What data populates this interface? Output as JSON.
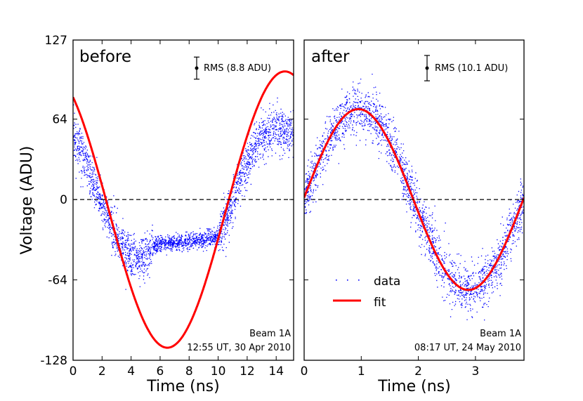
{
  "chart_data": {
    "type": "scatter",
    "ylabel": "Voltage (ADU)",
    "ylim": [
      -128,
      127
    ],
    "yticks": [
      {
        "value": 127,
        "label": "127"
      },
      {
        "value": 64,
        "label": "64"
      },
      {
        "value": 0,
        "label": "0"
      },
      {
        "value": -64,
        "label": "-64"
      },
      {
        "value": -128,
        "label": "-128"
      }
    ],
    "legend": {
      "placement": "lower-left of right panel",
      "data_label": "data",
      "fit_label": "fit"
    },
    "colors": {
      "data": "#0000ff",
      "fit": "#ff0000",
      "zero_line": "#000000"
    },
    "panels": [
      {
        "name": "before",
        "title": "before",
        "xlabel": "Time (ns)",
        "xlim": [
          0,
          15.2
        ],
        "xticks": [
          {
            "value": 0,
            "label": "0"
          },
          {
            "value": 2,
            "label": "2"
          },
          {
            "value": 4,
            "label": "4"
          },
          {
            "value": 6,
            "label": "6"
          },
          {
            "value": 8,
            "label": "8"
          },
          {
            "value": 10,
            "label": "10"
          },
          {
            "value": 12,
            "label": "12"
          },
          {
            "value": 14,
            "label": "14"
          }
        ],
        "rms_label": "RMS (8.8 ADU)",
        "rms_value": 8.8,
        "beam": "Beam 1A",
        "timestamp": "12:55 UT, 30 Apr 2010",
        "data_trace": [
          [
            0,
            52
          ],
          [
            0.5,
            40
          ],
          [
            1.0,
            25
          ],
          [
            1.5,
            10
          ],
          [
            2.0,
            -5
          ],
          [
            2.5,
            -18
          ],
          [
            3.0,
            -30
          ],
          [
            3.5,
            -40
          ],
          [
            4.0,
            -47
          ],
          [
            4.5,
            -49
          ],
          [
            5.0,
            -44
          ],
          [
            5.5,
            -37
          ],
          [
            6.0,
            -35
          ],
          [
            7.0,
            -34
          ],
          [
            8.0,
            -33
          ],
          [
            9.0,
            -32
          ],
          [
            10.0,
            -28
          ],
          [
            10.5,
            -16
          ],
          [
            11.0,
            0
          ],
          [
            11.5,
            16
          ],
          [
            12.0,
            30
          ],
          [
            12.5,
            42
          ],
          [
            13.0,
            50
          ],
          [
            13.5,
            54
          ],
          [
            14.0,
            56
          ],
          [
            14.5,
            55
          ],
          [
            15.0,
            53
          ],
          [
            15.2,
            52
          ]
        ],
        "fit_curve": {
          "amplitude": 110,
          "period_ns": 16.2,
          "phase_peak_ns": 14.6,
          "offset": -8
        }
      },
      {
        "name": "after",
        "title": "after",
        "xlabel": "Time (ns)",
        "xlim": [
          0,
          3.85
        ],
        "xticks": [
          {
            "value": 0,
            "label": "0"
          },
          {
            "value": 1,
            "label": "1"
          },
          {
            "value": 2,
            "label": "2"
          },
          {
            "value": 3,
            "label": "3"
          }
        ],
        "rms_label": "RMS (10.1 ADU)",
        "rms_value": 10.1,
        "beam": "Beam 1A",
        "timestamp": "08:17 UT, 24 May 2010",
        "fit_curve": {
          "amplitude": 72,
          "period_ns": 3.85,
          "phase_peak_ns": 0.95,
          "offset": 0
        }
      }
    ]
  }
}
